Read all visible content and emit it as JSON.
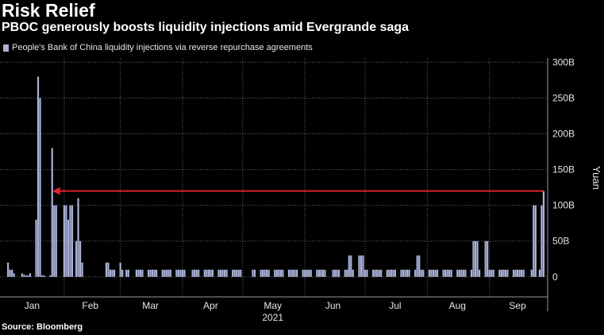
{
  "title": "Risk Relief",
  "subtitle": "PBOC generously boosts liquidity injections amid Evergrande saga",
  "source": "Source: Bloomberg",
  "colors": {
    "bars": "#a9b1d6",
    "arrow": "#e0202a",
    "grid": "#6a6a6a",
    "axis": "#9a9a9a"
  },
  "chart_data": {
    "type": "bar",
    "title": "",
    "series": [
      {
        "name": "People's Bank of China liquidity injections via reverse repurchase agreements"
      }
    ],
    "ylabel": "Yuan",
    "ylim": [
      -28,
      306
    ],
    "yticks": [
      0,
      50,
      100,
      150,
      200,
      250,
      300
    ],
    "ytick_labels": [
      "0",
      "50B",
      "100B",
      "150B",
      "200B",
      "250B",
      "300B"
    ],
    "xlim": [
      "2020-12-31",
      "2021-09-30"
    ],
    "x_month_labels": [
      {
        "date": "2021-01-16",
        "label": "Jan"
      },
      {
        "date": "2021-02-14",
        "label": "Feb"
      },
      {
        "date": "2021-03-16",
        "label": "Mar"
      },
      {
        "date": "2021-04-15",
        "label": "Apr"
      },
      {
        "date": "2021-05-16",
        "label": "May"
      },
      {
        "date": "2021-06-15",
        "label": "Jun"
      },
      {
        "date": "2021-07-16",
        "label": "Jul"
      },
      {
        "date": "2021-08-16",
        "label": "Aug"
      },
      {
        "date": "2021-09-15",
        "label": "Sep"
      }
    ],
    "x_year_label": {
      "date": "2021-05-16",
      "label": "2021"
    },
    "annotation": {
      "type": "arrow",
      "from": {
        "date": "2021-09-28",
        "value": 120
      },
      "to": {
        "date": "2021-01-26",
        "value": 120
      }
    },
    "bars": [
      [
        "2021-01-04",
        20
      ],
      [
        "2021-01-05",
        10
      ],
      [
        "2021-01-06",
        10
      ],
      [
        "2021-01-07",
        5
      ],
      [
        "2021-01-11",
        5
      ],
      [
        "2021-01-12",
        3
      ],
      [
        "2021-01-13",
        2
      ],
      [
        "2021-01-14",
        2
      ],
      [
        "2021-01-15",
        5
      ],
      [
        "2021-01-18",
        80
      ],
      [
        "2021-01-19",
        280
      ],
      [
        "2021-01-20",
        250
      ],
      [
        "2021-01-21",
        2
      ],
      [
        "2021-01-22",
        2
      ],
      [
        "2021-01-25",
        2
      ],
      [
        "2021-01-26",
        180
      ],
      [
        "2021-01-27",
        100
      ],
      [
        "2021-01-28",
        100
      ],
      [
        "2021-02-01",
        100
      ],
      [
        "2021-02-02",
        100
      ],
      [
        "2021-02-03",
        80
      ],
      [
        "2021-02-04",
        100
      ],
      [
        "2021-02-05",
        100
      ],
      [
        "2021-02-07",
        50
      ],
      [
        "2021-02-08",
        110
      ],
      [
        "2021-02-09",
        50
      ],
      [
        "2021-02-10",
        20
      ],
      [
        "2021-02-22",
        20
      ],
      [
        "2021-02-23",
        20
      ],
      [
        "2021-02-24",
        10
      ],
      [
        "2021-02-25",
        10
      ],
      [
        "2021-02-26",
        10
      ],
      [
        "2021-03-01",
        20
      ],
      [
        "2021-03-02",
        10
      ],
      [
        "2021-03-04",
        10
      ],
      [
        "2021-03-05",
        10
      ],
      [
        "2021-03-09",
        10
      ],
      [
        "2021-03-10",
        10
      ],
      [
        "2021-03-11",
        10
      ],
      [
        "2021-03-12",
        10
      ],
      [
        "2021-03-15",
        10
      ],
      [
        "2021-03-16",
        10
      ],
      [
        "2021-03-17",
        10
      ],
      [
        "2021-03-18",
        10
      ],
      [
        "2021-03-19",
        10
      ],
      [
        "2021-03-22",
        10
      ],
      [
        "2021-03-23",
        10
      ],
      [
        "2021-03-24",
        10
      ],
      [
        "2021-03-25",
        10
      ],
      [
        "2021-03-26",
        10
      ],
      [
        "2021-03-29",
        10
      ],
      [
        "2021-03-30",
        10
      ],
      [
        "2021-03-31",
        10
      ],
      [
        "2021-04-01",
        10
      ],
      [
        "2021-04-02",
        10
      ],
      [
        "2021-04-06",
        10
      ],
      [
        "2021-04-07",
        10
      ],
      [
        "2021-04-08",
        10
      ],
      [
        "2021-04-09",
        10
      ],
      [
        "2021-04-12",
        10
      ],
      [
        "2021-04-13",
        10
      ],
      [
        "2021-04-14",
        10
      ],
      [
        "2021-04-15",
        10
      ],
      [
        "2021-04-16",
        10
      ],
      [
        "2021-04-19",
        10
      ],
      [
        "2021-04-20",
        10
      ],
      [
        "2021-04-21",
        10
      ],
      [
        "2021-04-22",
        10
      ],
      [
        "2021-04-23",
        10
      ],
      [
        "2021-04-26",
        10
      ],
      [
        "2021-04-27",
        10
      ],
      [
        "2021-04-28",
        10
      ],
      [
        "2021-04-29",
        10
      ],
      [
        "2021-04-30",
        10
      ],
      [
        "2021-05-06",
        10
      ],
      [
        "2021-05-07",
        10
      ],
      [
        "2021-05-10",
        10
      ],
      [
        "2021-05-11",
        10
      ],
      [
        "2021-05-12",
        10
      ],
      [
        "2021-05-13",
        10
      ],
      [
        "2021-05-14",
        10
      ],
      [
        "2021-05-17",
        10
      ],
      [
        "2021-05-18",
        10
      ],
      [
        "2021-05-19",
        10
      ],
      [
        "2021-05-20",
        10
      ],
      [
        "2021-05-21",
        10
      ],
      [
        "2021-05-24",
        10
      ],
      [
        "2021-05-25",
        10
      ],
      [
        "2021-05-26",
        10
      ],
      [
        "2021-05-27",
        10
      ],
      [
        "2021-05-28",
        10
      ],
      [
        "2021-05-31",
        10
      ],
      [
        "2021-06-01",
        10
      ],
      [
        "2021-06-02",
        10
      ],
      [
        "2021-06-03",
        10
      ],
      [
        "2021-06-04",
        10
      ],
      [
        "2021-06-07",
        10
      ],
      [
        "2021-06-08",
        10
      ],
      [
        "2021-06-09",
        10
      ],
      [
        "2021-06-10",
        10
      ],
      [
        "2021-06-11",
        10
      ],
      [
        "2021-06-15",
        10
      ],
      [
        "2021-06-16",
        10
      ],
      [
        "2021-06-17",
        10
      ],
      [
        "2021-06-18",
        10
      ],
      [
        "2021-06-21",
        10
      ],
      [
        "2021-06-22",
        10
      ],
      [
        "2021-06-23",
        30
      ],
      [
        "2021-06-24",
        30
      ],
      [
        "2021-06-25",
        10
      ],
      [
        "2021-06-28",
        30
      ],
      [
        "2021-06-29",
        30
      ],
      [
        "2021-06-30",
        30
      ],
      [
        "2021-07-01",
        10
      ],
      [
        "2021-07-02",
        10
      ],
      [
        "2021-07-05",
        10
      ],
      [
        "2021-07-06",
        10
      ],
      [
        "2021-07-07",
        10
      ],
      [
        "2021-07-08",
        10
      ],
      [
        "2021-07-09",
        10
      ],
      [
        "2021-07-12",
        10
      ],
      [
        "2021-07-13",
        10
      ],
      [
        "2021-07-14",
        10
      ],
      [
        "2021-07-15",
        10
      ],
      [
        "2021-07-16",
        10
      ],
      [
        "2021-07-19",
        10
      ],
      [
        "2021-07-20",
        10
      ],
      [
        "2021-07-21",
        10
      ],
      [
        "2021-07-22",
        10
      ],
      [
        "2021-07-23",
        10
      ],
      [
        "2021-07-26",
        10
      ],
      [
        "2021-07-27",
        30
      ],
      [
        "2021-07-28",
        30
      ],
      [
        "2021-07-29",
        10
      ],
      [
        "2021-07-30",
        10
      ],
      [
        "2021-08-02",
        10
      ],
      [
        "2021-08-03",
        10
      ],
      [
        "2021-08-04",
        10
      ],
      [
        "2021-08-05",
        10
      ],
      [
        "2021-08-06",
        10
      ],
      [
        "2021-08-09",
        10
      ],
      [
        "2021-08-10",
        10
      ],
      [
        "2021-08-11",
        10
      ],
      [
        "2021-08-12",
        10
      ],
      [
        "2021-08-13",
        10
      ],
      [
        "2021-08-16",
        10
      ],
      [
        "2021-08-17",
        10
      ],
      [
        "2021-08-18",
        10
      ],
      [
        "2021-08-19",
        10
      ],
      [
        "2021-08-20",
        10
      ],
      [
        "2021-08-23",
        10
      ],
      [
        "2021-08-24",
        50
      ],
      [
        "2021-08-25",
        50
      ],
      [
        "2021-08-26",
        50
      ],
      [
        "2021-08-27",
        10
      ],
      [
        "2021-08-30",
        50
      ],
      [
        "2021-08-31",
        50
      ],
      [
        "2021-09-01",
        10
      ],
      [
        "2021-09-02",
        10
      ],
      [
        "2021-09-03",
        10
      ],
      [
        "2021-09-06",
        10
      ],
      [
        "2021-09-07",
        10
      ],
      [
        "2021-09-08",
        10
      ],
      [
        "2021-09-09",
        10
      ],
      [
        "2021-09-10",
        10
      ],
      [
        "2021-09-13",
        10
      ],
      [
        "2021-09-14",
        10
      ],
      [
        "2021-09-15",
        10
      ],
      [
        "2021-09-16",
        10
      ],
      [
        "2021-09-17",
        10
      ],
      [
        "2021-09-18",
        10
      ],
      [
        "2021-09-22",
        10
      ],
      [
        "2021-09-23",
        100
      ],
      [
        "2021-09-24",
        100
      ],
      [
        "2021-09-26",
        10
      ],
      [
        "2021-09-27",
        100
      ],
      [
        "2021-09-28",
        120
      ]
    ]
  }
}
